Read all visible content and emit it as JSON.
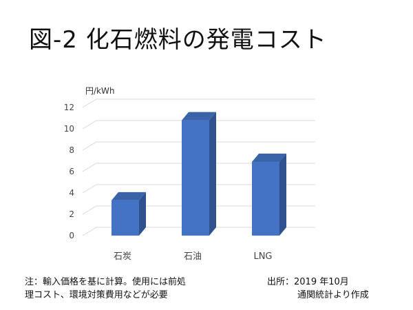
{
  "title": "図-2 化石燃料の発電コスト",
  "note": {
    "line1": "注：輸入価格を基に計算。使用には前処",
    "line2": "理コスト、環境対策費用などが必要"
  },
  "source": {
    "line1": "出所：2019 年10月",
    "line2": "通関統計より作成"
  },
  "colors": {
    "bar_front": "#4472C4",
    "bar_side": "#2F528F",
    "bar_top": "#3A63A8",
    "grid": "#D9D9D9"
  },
  "chart_data": {
    "type": "bar",
    "categories": [
      "石炭",
      "石油",
      "LNG"
    ],
    "values": [
      3.3,
      10.8,
      6.9
    ],
    "unit_label": "円/kWh",
    "ylim": [
      0,
      12
    ],
    "yticks": [
      0,
      2,
      4,
      6,
      8,
      10,
      12
    ],
    "grid": true,
    "style": "3d-column"
  }
}
